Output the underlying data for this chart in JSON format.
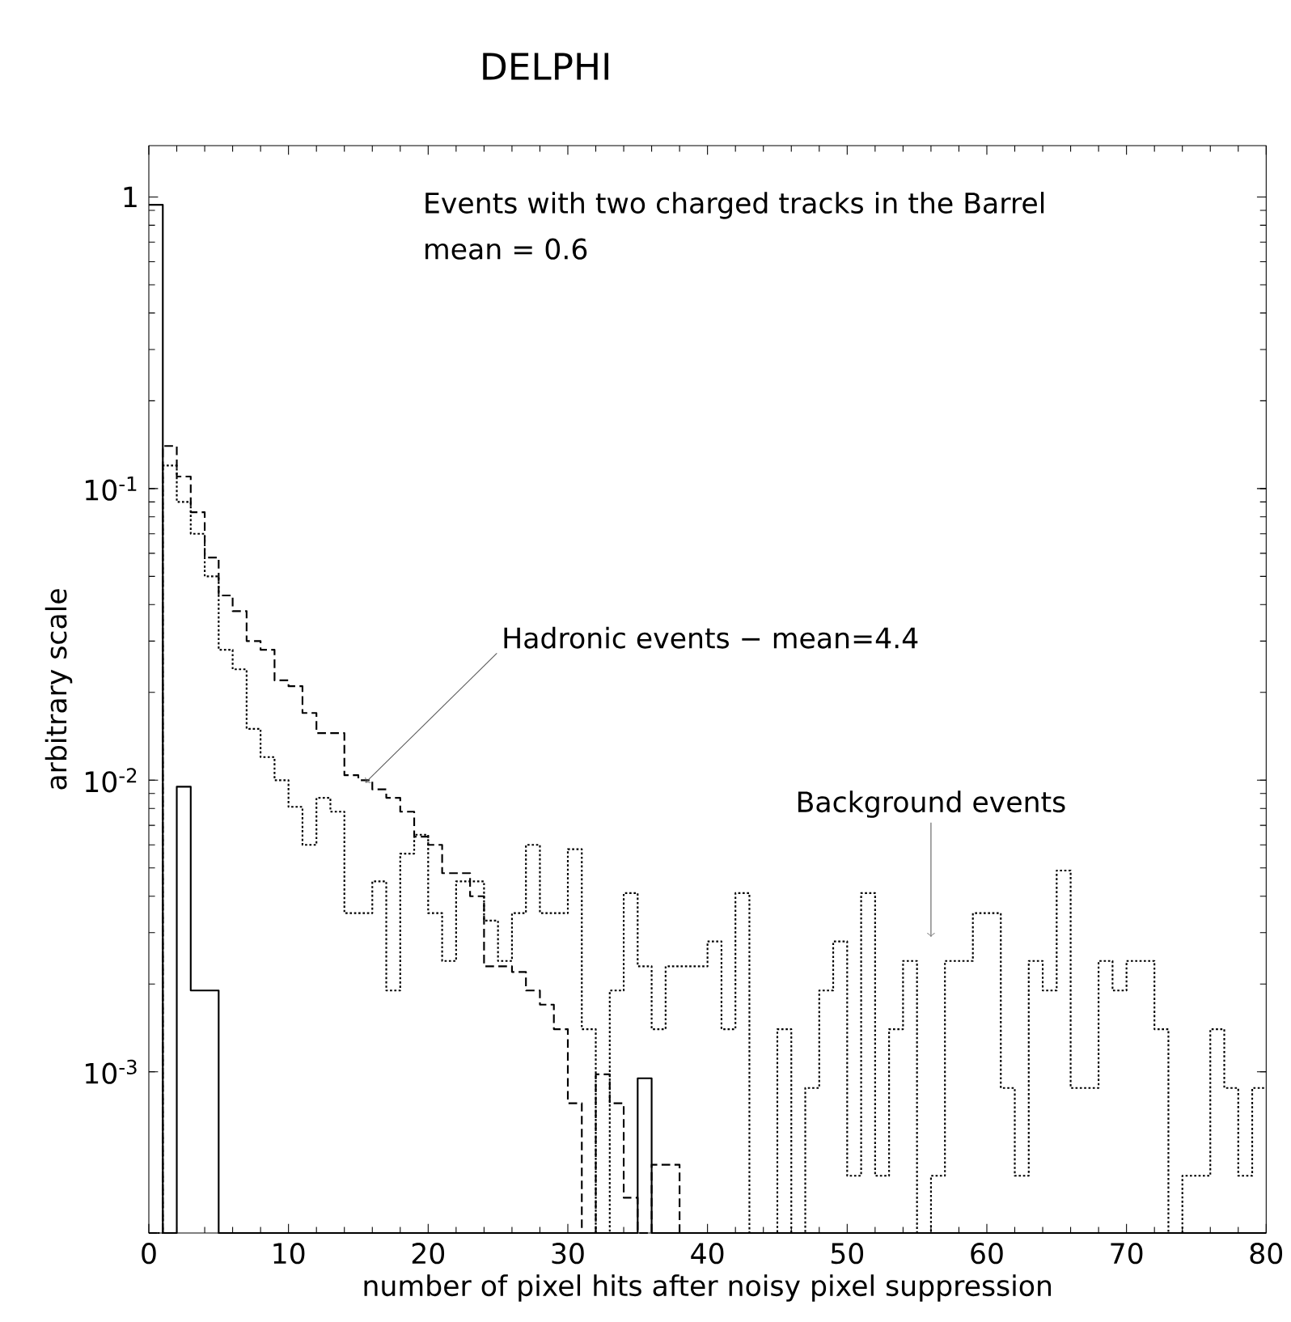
{
  "chart_data": {
    "type": "histogram",
    "title": "DELPHI",
    "xlabel": "number of pixel hits after noisy pixel suppression",
    "ylabel": "arbitrary scale",
    "bins": [
      0,
      1,
      2,
      3,
      4,
      5,
      6,
      7,
      8,
      9,
      10,
      11,
      12,
      13,
      14,
      15,
      16,
      17,
      18,
      19,
      20,
      21,
      22,
      23,
      24,
      25,
      26,
      27,
      28,
      29,
      30,
      31,
      32,
      33,
      34,
      35,
      36,
      37,
      38,
      39,
      40,
      41,
      42,
      43,
      44,
      45,
      46,
      47,
      48,
      49,
      50,
      51,
      52,
      53,
      54,
      55,
      56,
      57,
      58,
      59,
      60,
      61,
      62,
      63,
      64,
      65,
      66,
      67,
      68,
      69,
      70,
      71,
      72,
      73,
      74,
      75,
      76,
      77,
      78,
      79,
      80
    ],
    "series": [
      {
        "color": "#000000",
        "line_style": "solid",
        "values": [
          0.94,
          null,
          0.0095,
          0.0019,
          0.0019,
          null,
          null,
          null,
          null,
          null,
          null,
          null,
          null,
          null,
          null,
          null,
          null,
          null,
          null,
          null,
          null,
          null,
          null,
          null,
          null,
          null,
          null,
          null,
          null,
          null,
          null,
          null,
          null,
          null,
          null,
          0.00095,
          null,
          null,
          null,
          null,
          null,
          null,
          null,
          null,
          null,
          null,
          null,
          null,
          null,
          null,
          null,
          null,
          null,
          null,
          null,
          null,
          null,
          null,
          null,
          null,
          null,
          null,
          null,
          null,
          null,
          null,
          null,
          null,
          null,
          null,
          null,
          null,
          null,
          null,
          null,
          null,
          null,
          null,
          null,
          null
        ]
      },
      {
        "color": "#000000",
        "line_style": "dashed",
        "values": [
          null,
          0.14,
          0.11,
          0.083,
          0.058,
          0.043,
          0.038,
          0.03,
          0.028,
          0.022,
          0.021,
          0.017,
          0.0145,
          0.0145,
          0.0104,
          0.01,
          0.0093,
          0.0087,
          0.0078,
          0.0064,
          0.006,
          0.0048,
          0.0048,
          0.004,
          0.0023,
          0.0023,
          0.0022,
          0.0019,
          0.0017,
          0.0014,
          0.00078,
          null,
          0.00098,
          0.00078,
          0.00037,
          null,
          0.00048,
          0.00048,
          null,
          null,
          null,
          null,
          null,
          null,
          null,
          null,
          null,
          null,
          null,
          null,
          null,
          null,
          null,
          null,
          null,
          null,
          null,
          null,
          null,
          null,
          null,
          null,
          null,
          null,
          null,
          null,
          null,
          null,
          null,
          null,
          null,
          null,
          null,
          null,
          null,
          null,
          null,
          null,
          null,
          null
        ]
      },
      {
        "color": "#000000",
        "line_style": "dotted",
        "values": [
          null,
          0.12,
          0.09,
          0.07,
          0.05,
          0.028,
          0.024,
          0.015,
          0.012,
          0.01,
          0.0081,
          0.006,
          0.0087,
          0.0078,
          0.0035,
          0.0035,
          0.0045,
          0.0019,
          0.0056,
          0.0065,
          0.0035,
          0.0024,
          0.0045,
          0.0045,
          0.0033,
          0.0024,
          0.0035,
          0.006,
          0.0035,
          0.0035,
          0.0058,
          0.0014,
          null,
          0.0019,
          0.0041,
          0.0023,
          0.0014,
          0.0023,
          0.0023,
          0.0023,
          0.0028,
          0.0014,
          0.0041,
          null,
          null,
          0.0014,
          null,
          0.00088,
          0.0019,
          0.0028,
          0.00044,
          0.0041,
          0.00044,
          0.0014,
          0.0024,
          null,
          0.00044,
          0.0024,
          0.0024,
          0.0035,
          0.0035,
          0.00088,
          0.00044,
          0.0024,
          0.0019,
          0.0049,
          0.00088,
          0.00088,
          0.0024,
          0.0019,
          0.0024,
          0.0024,
          0.0014,
          null,
          0.00044,
          0.00044,
          0.0014,
          0.00088,
          0.00044,
          0.00088
        ]
      }
    ],
    "xlim": [
      0,
      80
    ],
    "xticks": [
      0,
      10,
      20,
      30,
      40,
      50,
      60,
      70,
      80
    ],
    "ylim": [
      0.00028,
      1.5
    ],
    "log": "y",
    "yticks": [
      {
        "value": 0.001,
        "label": "10$^{-3}$"
      },
      {
        "value": 0.01,
        "label": "10$^{-2}$"
      },
      {
        "value": 0.1,
        "label": "10$^{-1}$"
      },
      1
    ],
    "annotations": [
      "Events with two charged tracks in the Barrel",
      "mean = 0.6",
      {
        "text": "Hadronic events − mean=4.4",
        "x": 15.5,
        "y": 0.0098
      },
      {
        "text": "Background events",
        "x": 56,
        "y": 0.0029
      }
    ]
  }
}
